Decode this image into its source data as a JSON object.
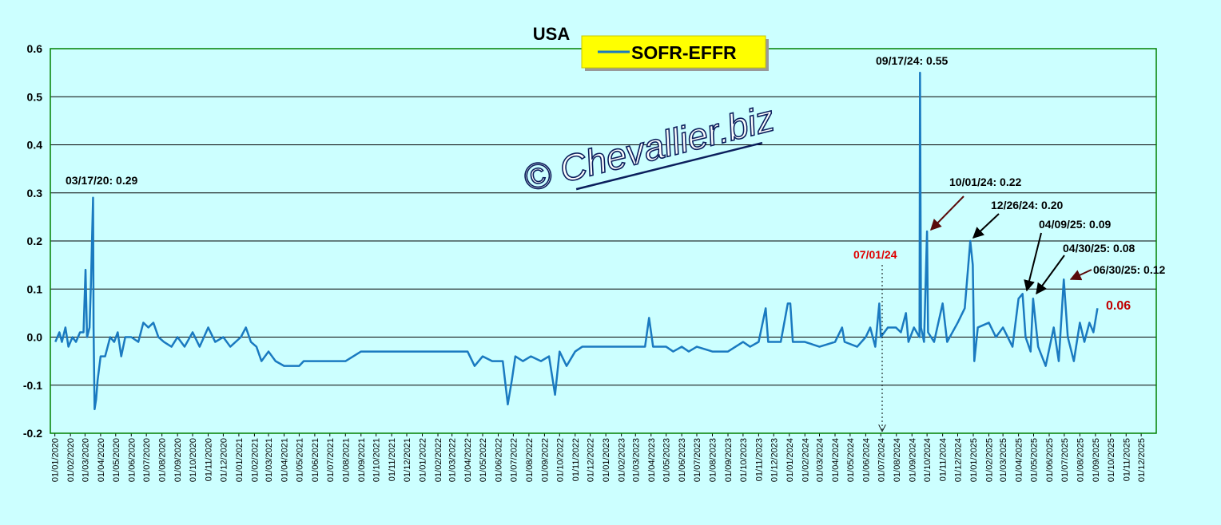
{
  "chart_data": {
    "type": "line",
    "title": "USA",
    "watermark": "© Chevallier.biz",
    "ylim": [
      -0.2,
      0.6
    ],
    "yticks": [
      -0.2,
      -0.1,
      {
        "value": 0,
        "label": "0.0"
      },
      0.1,
      0.2,
      0.3,
      0.4,
      0.5,
      0.6
    ],
    "xlim": [
      "2019-12-23",
      "2025-12-31"
    ],
    "xticks": [
      {
        "value": "2020-01-01",
        "label": "01/01/2020"
      },
      {
        "value": "2020-02-01",
        "label": "01/02/2020"
      },
      {
        "value": "2020-03-01",
        "label": "01/03/2020"
      },
      {
        "value": "2020-04-01",
        "label": "01/04/2020"
      },
      {
        "value": "2020-05-01",
        "label": "01/05/2020"
      },
      {
        "value": "2020-06-01",
        "label": "01/06/2020"
      },
      {
        "value": "2020-07-01",
        "label": "01/07/2020"
      },
      {
        "value": "2020-08-01",
        "label": "01/08/2020"
      },
      {
        "value": "2020-09-01",
        "label": "01/09/2020"
      },
      {
        "value": "2020-10-01",
        "label": "01/10/2020"
      },
      {
        "value": "2020-11-01",
        "label": "01/11/2020"
      },
      {
        "value": "2020-12-01",
        "label": "01/12/2020"
      },
      {
        "value": "2021-01-01",
        "label": "01/01/2021"
      },
      {
        "value": "2021-02-01",
        "label": "01/02/2021"
      },
      {
        "value": "2021-03-01",
        "label": "01/03/2021"
      },
      {
        "value": "2021-04-01",
        "label": "01/04/2021"
      },
      {
        "value": "2021-05-01",
        "label": "01/05/2021"
      },
      {
        "value": "2021-06-01",
        "label": "01/06/2021"
      },
      {
        "value": "2021-07-01",
        "label": "01/07/2021"
      },
      {
        "value": "2021-08-01",
        "label": "01/08/2021"
      },
      {
        "value": "2021-09-01",
        "label": "01/09/2021"
      },
      {
        "value": "2021-10-01",
        "label": "01/10/2021"
      },
      {
        "value": "2021-11-01",
        "label": "01/11/2021"
      },
      {
        "value": "2021-12-01",
        "label": "01/12/2021"
      },
      {
        "value": "2022-01-01",
        "label": "01/01/2022"
      },
      {
        "value": "2022-02-01",
        "label": "01/02/2022"
      },
      {
        "value": "2022-03-01",
        "label": "01/03/2022"
      },
      {
        "value": "2022-04-01",
        "label": "01/04/2022"
      },
      {
        "value": "2022-05-01",
        "label": "01/05/2022"
      },
      {
        "value": "2022-06-01",
        "label": "01/06/2022"
      },
      {
        "value": "2022-07-01",
        "label": "01/07/2022"
      },
      {
        "value": "2022-08-01",
        "label": "01/08/2022"
      },
      {
        "value": "2022-09-01",
        "label": "01/09/2022"
      },
      {
        "value": "2022-10-01",
        "label": "01/10/2022"
      },
      {
        "value": "2022-11-01",
        "label": "01/11/2022"
      },
      {
        "value": "2022-12-01",
        "label": "01/12/2022"
      },
      {
        "value": "2023-01-01",
        "label": "01/01/2023"
      },
      {
        "value": "2023-02-01",
        "label": "01/02/2023"
      },
      {
        "value": "2023-03-01",
        "label": "01/03/2023"
      },
      {
        "value": "2023-04-01",
        "label": "01/04/2023"
      },
      {
        "value": "2023-05-01",
        "label": "01/05/2023"
      },
      {
        "value": "2023-06-01",
        "label": "01/06/2023"
      },
      {
        "value": "2023-07-01",
        "label": "01/07/2023"
      },
      {
        "value": "2023-08-01",
        "label": "01/08/2023"
      },
      {
        "value": "2023-09-01",
        "label": "01/09/2023"
      },
      {
        "value": "2023-10-01",
        "label": "01/10/2023"
      },
      {
        "value": "2023-11-01",
        "label": "01/11/2023"
      },
      {
        "value": "2023-12-01",
        "label": "01/12/2023"
      },
      {
        "value": "2024-01-01",
        "label": "01/01/2024"
      },
      {
        "value": "2024-02-01",
        "label": "01/02/2024"
      },
      {
        "value": "2024-03-01",
        "label": "01/03/2024"
      },
      {
        "value": "2024-04-01",
        "label": "01/04/2024"
      },
      {
        "value": "2024-05-01",
        "label": "01/05/2024"
      },
      {
        "value": "2024-06-01",
        "label": "01/06/2024"
      },
      {
        "value": "2024-07-01",
        "label": "01/07/2024"
      },
      {
        "value": "2024-08-01",
        "label": "01/08/2024"
      },
      {
        "value": "2024-09-01",
        "label": "01/09/2024"
      },
      {
        "value": "2024-10-01",
        "label": "01/10/2024"
      },
      {
        "value": "2024-11-01",
        "label": "01/11/2024"
      },
      {
        "value": "2024-12-01",
        "label": "01/12/2024"
      },
      {
        "value": "2025-01-01",
        "label": "01/01/2025"
      },
      {
        "value": "2025-02-01",
        "label": "01/02/2025"
      },
      {
        "value": "2025-03-01",
        "label": "01/03/2025"
      },
      {
        "value": "2025-04-01",
        "label": "01/04/2025"
      },
      {
        "value": "2025-05-01",
        "label": "01/05/2025"
      },
      {
        "value": "2025-06-01",
        "label": "01/06/2025"
      },
      {
        "value": "2025-07-01",
        "label": "01/07/2025"
      },
      {
        "value": "2025-08-01",
        "label": "01/08/2025"
      },
      {
        "value": "2025-09-01",
        "label": "01/09/2025"
      },
      {
        "value": "2025-10-01",
        "label": "01/10/2025"
      },
      {
        "value": "2025-11-01",
        "label": "01/11/2025"
      },
      {
        "value": "2025-12-01",
        "label": "01/12/2025"
      }
    ],
    "grid": true,
    "x": [
      "2020-01-02",
      "2020-01-10",
      "2020-01-15",
      "2020-01-22",
      "2020-01-28",
      "2020-02-05",
      "2020-02-12",
      "2020-02-20",
      "2020-02-27",
      "2020-03-02",
      "2020-03-05",
      "2020-03-10",
      "2020-03-13",
      "2020-03-17",
      "2020-03-18",
      "2020-03-20",
      "2020-03-23",
      "2020-03-26",
      "2020-04-01",
      "2020-04-10",
      "2020-04-15",
      "2020-04-20",
      "2020-04-28",
      "2020-05-05",
      "2020-05-12",
      "2020-05-20",
      "2020-06-01",
      "2020-06-15",
      "2020-06-25",
      "2020-07-05",
      "2020-07-15",
      "2020-07-25",
      "2020-08-05",
      "2020-08-20",
      "2020-09-01",
      "2020-09-15",
      "2020-10-01",
      "2020-10-15",
      "2020-11-01",
      "2020-11-15",
      "2020-12-01",
      "2020-12-15",
      "2021-01-05",
      "2021-01-15",
      "2021-01-25",
      "2021-02-05",
      "2021-02-15",
      "2021-03-01",
      "2021-03-15",
      "2021-04-01",
      "2021-05-01",
      "2021-05-10",
      "2021-06-01",
      "2021-07-01",
      "2021-08-01",
      "2021-09-01",
      "2021-10-01",
      "2021-11-01",
      "2021-12-01",
      "2022-01-01",
      "2022-02-01",
      "2022-03-01",
      "2022-04-01",
      "2022-04-15",
      "2022-05-01",
      "2022-05-20",
      "2022-06-10",
      "2022-06-20",
      "2022-06-28",
      "2022-07-05",
      "2022-07-20",
      "2022-08-05",
      "2022-08-25",
      "2022-09-10",
      "2022-09-22",
      "2022-10-01",
      "2022-10-15",
      "2022-11-01",
      "2022-11-15",
      "2022-12-01",
      "2023-01-01",
      "2023-02-01",
      "2023-03-01",
      "2023-03-20",
      "2023-03-28",
      "2023-04-05",
      "2023-05-01",
      "2023-05-15",
      "2023-06-01",
      "2023-06-15",
      "2023-07-01",
      "2023-08-01",
      "2023-09-01",
      "2023-10-01",
      "2023-10-15",
      "2023-11-01",
      "2023-11-15",
      "2023-11-20",
      "2023-12-15",
      "2023-12-29",
      "2024-01-03",
      "2024-01-08",
      "2024-02-01",
      "2024-03-01",
      "2024-04-01",
      "2024-04-15",
      "2024-04-20",
      "2024-05-15",
      "2024-06-01",
      "2024-06-10",
      "2024-06-20",
      "2024-06-28",
      "2024-07-01",
      "2024-07-15",
      "2024-07-31",
      "2024-08-10",
      "2024-08-20",
      "2024-08-25",
      "2024-09-05",
      "2024-09-16",
      "2024-09-17",
      "2024-09-19",
      "2024-09-25",
      "2024-10-01",
      "2024-10-03",
      "2024-10-15",
      "2024-11-01",
      "2024-11-10",
      "2024-12-01",
      "2024-12-15",
      "2024-12-26",
      "2024-12-31",
      "2025-01-03",
      "2025-01-10",
      "2025-02-01",
      "2025-02-15",
      "2025-03-01",
      "2025-03-20",
      "2025-04-01",
      "2025-04-09",
      "2025-04-15",
      "2025-04-25",
      "2025-04-30",
      "2025-05-10",
      "2025-05-25",
      "2025-06-10",
      "2025-06-20",
      "2025-06-30",
      "2025-07-08",
      "2025-07-20",
      "2025-08-01",
      "2025-08-10",
      "2025-08-20",
      "2025-08-28",
      "2025-09-05"
    ],
    "series": [
      {
        "name": "SOFR-EFFR",
        "color": "#1a7ac0",
        "values": [
          -0.01,
          0.01,
          -0.01,
          0.02,
          -0.02,
          0.0,
          -0.01,
          0.01,
          0.01,
          0.14,
          0.0,
          0.02,
          0.12,
          0.29,
          0.02,
          -0.15,
          -0.13,
          -0.09,
          -0.04,
          -0.04,
          -0.02,
          0.0,
          -0.01,
          0.01,
          -0.04,
          0.0,
          0.0,
          -0.01,
          0.03,
          0.02,
          0.03,
          0.0,
          -0.01,
          -0.02,
          0.0,
          -0.02,
          0.01,
          -0.02,
          0.02,
          -0.01,
          0.0,
          -0.02,
          0.0,
          0.02,
          -0.01,
          -0.02,
          -0.05,
          -0.03,
          -0.05,
          -0.06,
          -0.06,
          -0.05,
          -0.05,
          -0.05,
          -0.05,
          -0.03,
          -0.03,
          -0.03,
          -0.03,
          -0.03,
          -0.03,
          -0.03,
          -0.03,
          -0.06,
          -0.04,
          -0.05,
          -0.05,
          -0.14,
          -0.09,
          -0.04,
          -0.05,
          -0.04,
          -0.05,
          -0.04,
          -0.12,
          -0.03,
          -0.06,
          -0.03,
          -0.02,
          -0.02,
          -0.02,
          -0.02,
          -0.02,
          -0.02,
          0.04,
          -0.02,
          -0.02,
          -0.03,
          -0.02,
          -0.03,
          -0.02,
          -0.03,
          -0.03,
          -0.01,
          -0.02,
          -0.01,
          0.06,
          -0.01,
          -0.01,
          0.07,
          0.07,
          -0.01,
          -0.01,
          -0.02,
          -0.01,
          0.02,
          -0.01,
          -0.02,
          0.0,
          0.02,
          -0.02,
          0.07,
          0.0,
          0.02,
          0.02,
          0.01,
          0.05,
          -0.01,
          0.02,
          0.0,
          0.55,
          0.02,
          -0.01,
          0.22,
          0.01,
          -0.01,
          0.07,
          -0.01,
          0.03,
          0.06,
          0.2,
          0.15,
          -0.05,
          0.02,
          0.03,
          0.0,
          0.02,
          -0.02,
          0.08,
          0.09,
          0.0,
          -0.03,
          0.08,
          -0.02,
          -0.06,
          0.02,
          -0.05,
          0.12,
          0.0,
          -0.05,
          0.03,
          -0.01,
          0.03,
          0.01,
          0.06
        ]
      }
    ],
    "annotations": [
      "03/17/20: 0.29",
      "09/17/24: 0.55",
      "10/01/24: 0.22",
      "12/26/24: 0.20",
      "04/09/25: 0.09",
      "04/30/25: 0.08",
      "06/30/25: 0.12",
      "07/01/24",
      "0.06"
    ]
  }
}
